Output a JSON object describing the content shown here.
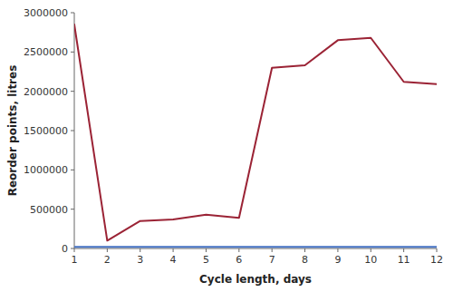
{
  "chart_data": {
    "type": "line",
    "xlabel": "Cycle length, days",
    "ylabel": "Reorder points, litres",
    "x": [
      1,
      2,
      3,
      4,
      5,
      6,
      7,
      8,
      9,
      10,
      11,
      12
    ],
    "series": [
      {
        "color": "#4472C4",
        "values": [
          20000,
          20000,
          20000,
          20000,
          20000,
          20000,
          20000,
          20000,
          20000,
          20000,
          20000,
          20000
        ]
      },
      {
        "color": "#9B2335",
        "values": [
          2850000,
          100000,
          350000,
          370000,
          430000,
          390000,
          2300000,
          2330000,
          2650000,
          2680000,
          2120000,
          2090000
        ]
      }
    ],
    "xlim": [
      1,
      12
    ],
    "ylim": [
      0,
      3000000
    ],
    "xticks": [
      1,
      2,
      3,
      4,
      5,
      6,
      7,
      8,
      9,
      10,
      11,
      12
    ],
    "yticks": [
      0,
      500000,
      1000000,
      1500000,
      2000000,
      2500000,
      3000000
    ],
    "grid": false
  }
}
